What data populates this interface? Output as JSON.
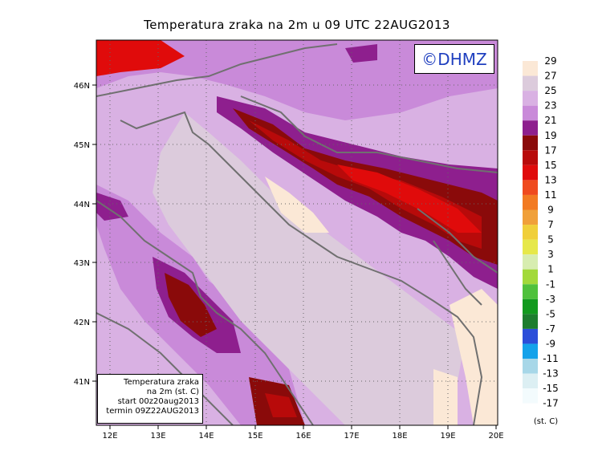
{
  "title": "Temperatura zraka na 2m u 09 UTC 22AUG2013",
  "logo": "©DHMZ",
  "info_box": {
    "line1": "Temperatura zraka",
    "line2": "na 2m (st. C)",
    "line3": "start 00z20aug2013",
    "line4": "termin 09Z22AUG2013"
  },
  "lat_ticks": [
    "46N",
    "45N",
    "44N",
    "43N",
    "42N",
    "41N"
  ],
  "lon_ticks": [
    "12E",
    "13E",
    "14E",
    "15E",
    "16E",
    "17E",
    "18E",
    "19E",
    "20E"
  ],
  "colorbar": {
    "unit": "(st. C)",
    "labels": [
      "29",
      "27",
      "25",
      "23",
      "21",
      "19",
      "17",
      "15",
      "13",
      "11",
      "9",
      "7",
      "5",
      "3",
      "1",
      "-1",
      "-3",
      "-5",
      "-7",
      "-9",
      "-11",
      "-13",
      "-15",
      "-17"
    ],
    "colors": [
      "#fbe8d6",
      "#dccbdc",
      "#d9b1e3",
      "#c98ad9",
      "#8e1f8e",
      "#8a0a0a",
      "#b80a0a",
      "#e00b0b",
      "#ef4a1e",
      "#f27a22",
      "#f0a03a",
      "#f0cf3a",
      "#e6e84a",
      "#d7edb0",
      "#a2d93a",
      "#4fc13c",
      "#129a1e",
      "#1d7d2e",
      "#2b4ed9",
      "#14a2ea",
      "#a7d7e8",
      "#dceff3",
      "#f3fbfd"
    ]
  }
}
